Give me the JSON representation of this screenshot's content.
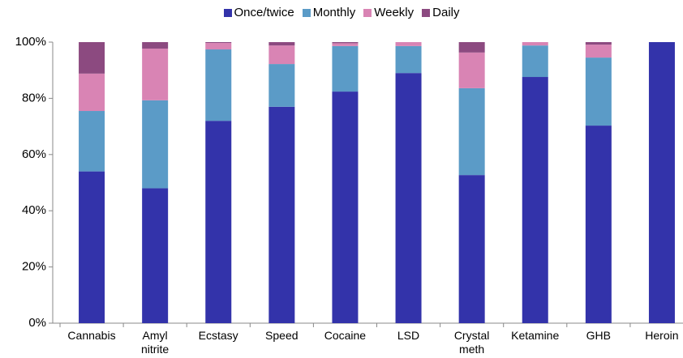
{
  "chart_data": {
    "type": "stacked_bar",
    "categories": [
      "Cannabis",
      "Amyl\nnitrite",
      "Ecstasy",
      "Speed",
      "Cocaine",
      "LSD",
      "Crystal\nmeth",
      "Ketamine",
      "GHB",
      "Heroin"
    ],
    "series": [
      {
        "name": "Once/twice",
        "color": "#3333aa",
        "values": [
          54,
          48,
          72,
          77,
          82.4,
          89,
          52.7,
          87.6,
          70.3,
          100
        ]
      },
      {
        "name": "Monthly",
        "color": "#5b9bc7",
        "values": [
          21.5,
          31.3,
          25.4,
          15.2,
          16.2,
          9.6,
          30.9,
          11.2,
          24.2,
          0
        ]
      },
      {
        "name": "Weekly",
        "color": "#d984b4",
        "values": [
          13.3,
          18.4,
          2.3,
          6.6,
          1,
          1.4,
          12.7,
          1.2,
          4.6,
          0
        ]
      },
      {
        "name": "Daily",
        "color": "#8c4a80",
        "values": [
          11.2,
          2.3,
          0.3,
          1.2,
          0.4,
          0,
          3.7,
          0,
          0.9,
          0
        ]
      }
    ],
    "ylim": [
      0,
      100
    ],
    "yticks": [
      {
        "value": 0,
        "label": "0%"
      },
      {
        "value": 20,
        "label": "20%"
      },
      {
        "value": 40,
        "label": "40%"
      },
      {
        "value": 60,
        "label": "60%"
      },
      {
        "value": 80,
        "label": "80%"
      },
      {
        "value": 100,
        "label": "100%"
      }
    ],
    "legend": "top"
  }
}
